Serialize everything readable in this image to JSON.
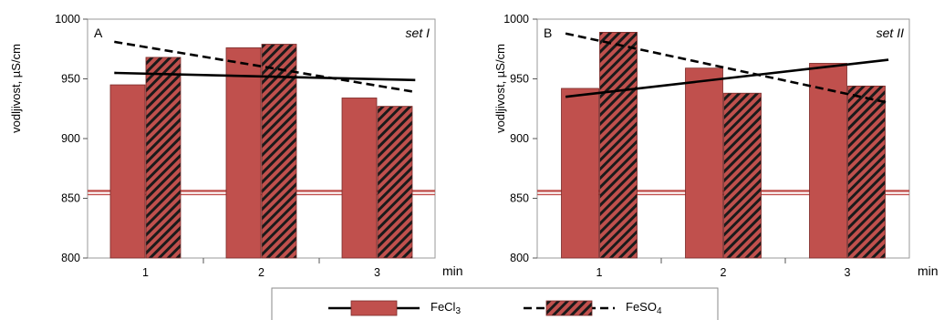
{
  "chart_data": [
    {
      "type": "bar",
      "panel_label": "A",
      "set_label": "set I",
      "ylabel": "vodljivost, µS/cm",
      "xlabel": "min",
      "categories": [
        "1",
        "2",
        "3"
      ],
      "ylim": [
        800,
        1000
      ],
      "yticks": [
        800,
        850,
        900,
        950,
        1000
      ],
      "grid": false,
      "reference_line": {
        "value": 855,
        "color": "#c0504d"
      },
      "series": [
        {
          "name": "FeCl3",
          "pattern": "solid",
          "color": "#c0504d",
          "values": [
            945,
            976,
            934
          ]
        },
        {
          "name": "FeSO4",
          "pattern": "hatched",
          "color": "#c0504d",
          "values": [
            968,
            979,
            927
          ]
        }
      ],
      "trendlines": [
        {
          "series": "FeCl3",
          "style": "solid",
          "start": 955,
          "end": 949
        },
        {
          "series": "FeSO4",
          "style": "dashed",
          "start": 981,
          "end": 939
        }
      ]
    },
    {
      "type": "bar",
      "panel_label": "B",
      "set_label": "set II",
      "ylabel": "vodljivost, µS/cm",
      "xlabel": "min",
      "categories": [
        "1",
        "2",
        "3"
      ],
      "ylim": [
        800,
        1000
      ],
      "yticks": [
        800,
        850,
        900,
        950,
        1000
      ],
      "grid": false,
      "reference_line": {
        "value": 855,
        "color": "#c0504d"
      },
      "series": [
        {
          "name": "FeCl3",
          "pattern": "solid",
          "color": "#c0504d",
          "values": [
            942,
            959,
            963
          ]
        },
        {
          "name": "FeSO4",
          "pattern": "hatched",
          "color": "#c0504d",
          "values": [
            989,
            938,
            944
          ]
        }
      ],
      "trendlines": [
        {
          "series": "FeCl3",
          "style": "solid",
          "start": 935,
          "end": 966
        },
        {
          "series": "FeSO4",
          "style": "dashed",
          "start": 988,
          "end": 930
        }
      ]
    }
  ],
  "legend": {
    "position": "bottom-center",
    "items": [
      {
        "label": "FeCl",
        "subscript": "3",
        "pattern": "solid",
        "line": "solid"
      },
      {
        "label": "FeSO",
        "subscript": "4",
        "pattern": "hatched",
        "line": "dashed"
      }
    ]
  }
}
